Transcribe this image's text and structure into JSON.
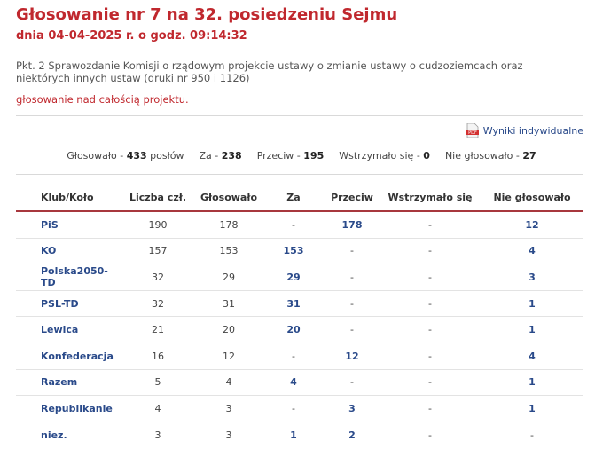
{
  "header": {
    "title": "Głosowanie nr 7 na 32. posiedzeniu Sejmu",
    "date_line": "dnia 04-04-2025 r. o godz. 09:14:32"
  },
  "description": "Pkt. 2 Sprawozdanie Komisji o rządowym projekcie ustawy o zmianie ustawy o cudzoziemcach oraz niektórych innych ustaw (druki nr 950 i 1126)",
  "subject": "głosowanie nad całością projektu.",
  "results_link": {
    "icon": "pdf-icon",
    "label": "Wyniki indywidualne"
  },
  "summary": {
    "voted_label": "Głosowało -",
    "voted_value": "433",
    "voted_unit": "posłów",
    "for_label": "Za -",
    "for_value": "238",
    "against_label": "Przeciw -",
    "against_value": "195",
    "abstain_label": "Wstrzymało się -",
    "abstain_value": "0",
    "absent_label": "Nie głosowało -",
    "absent_value": "27"
  },
  "table": {
    "headers": [
      "Klub/Koło",
      "Liczba czł.",
      "Głosowało",
      "Za",
      "Przeciw",
      "Wstrzymało się",
      "Nie głosowało"
    ],
    "rows": [
      {
        "club": "PiS",
        "members": "190",
        "voted": "178",
        "for": "-",
        "against": "178",
        "abstain": "-",
        "absent": "12"
      },
      {
        "club": "KO",
        "members": "157",
        "voted": "153",
        "for": "153",
        "against": "-",
        "abstain": "-",
        "absent": "4"
      },
      {
        "club": "Polska2050-TD",
        "members": "32",
        "voted": "29",
        "for": "29",
        "against": "-",
        "abstain": "-",
        "absent": "3"
      },
      {
        "club": "PSL-TD",
        "members": "32",
        "voted": "31",
        "for": "31",
        "against": "-",
        "abstain": "-",
        "absent": "1"
      },
      {
        "club": "Lewica",
        "members": "21",
        "voted": "20",
        "for": "20",
        "against": "-",
        "abstain": "-",
        "absent": "1"
      },
      {
        "club": "Konfederacja",
        "members": "16",
        "voted": "12",
        "for": "-",
        "against": "12",
        "abstain": "-",
        "absent": "4"
      },
      {
        "club": "Razem",
        "members": "5",
        "voted": "4",
        "for": "4",
        "against": "-",
        "abstain": "-",
        "absent": "1"
      },
      {
        "club": "Republikanie",
        "members": "4",
        "voted": "3",
        "for": "-",
        "against": "3",
        "abstain": "-",
        "absent": "1"
      },
      {
        "club": "niez.",
        "members": "3",
        "voted": "3",
        "for": "1",
        "against": "2",
        "abstain": "-",
        "absent": "-"
      }
    ]
  },
  "colors": {
    "accent_red": "#c0282e",
    "link_blue": "#2a4a8a",
    "header_rule": "#a8383e"
  }
}
